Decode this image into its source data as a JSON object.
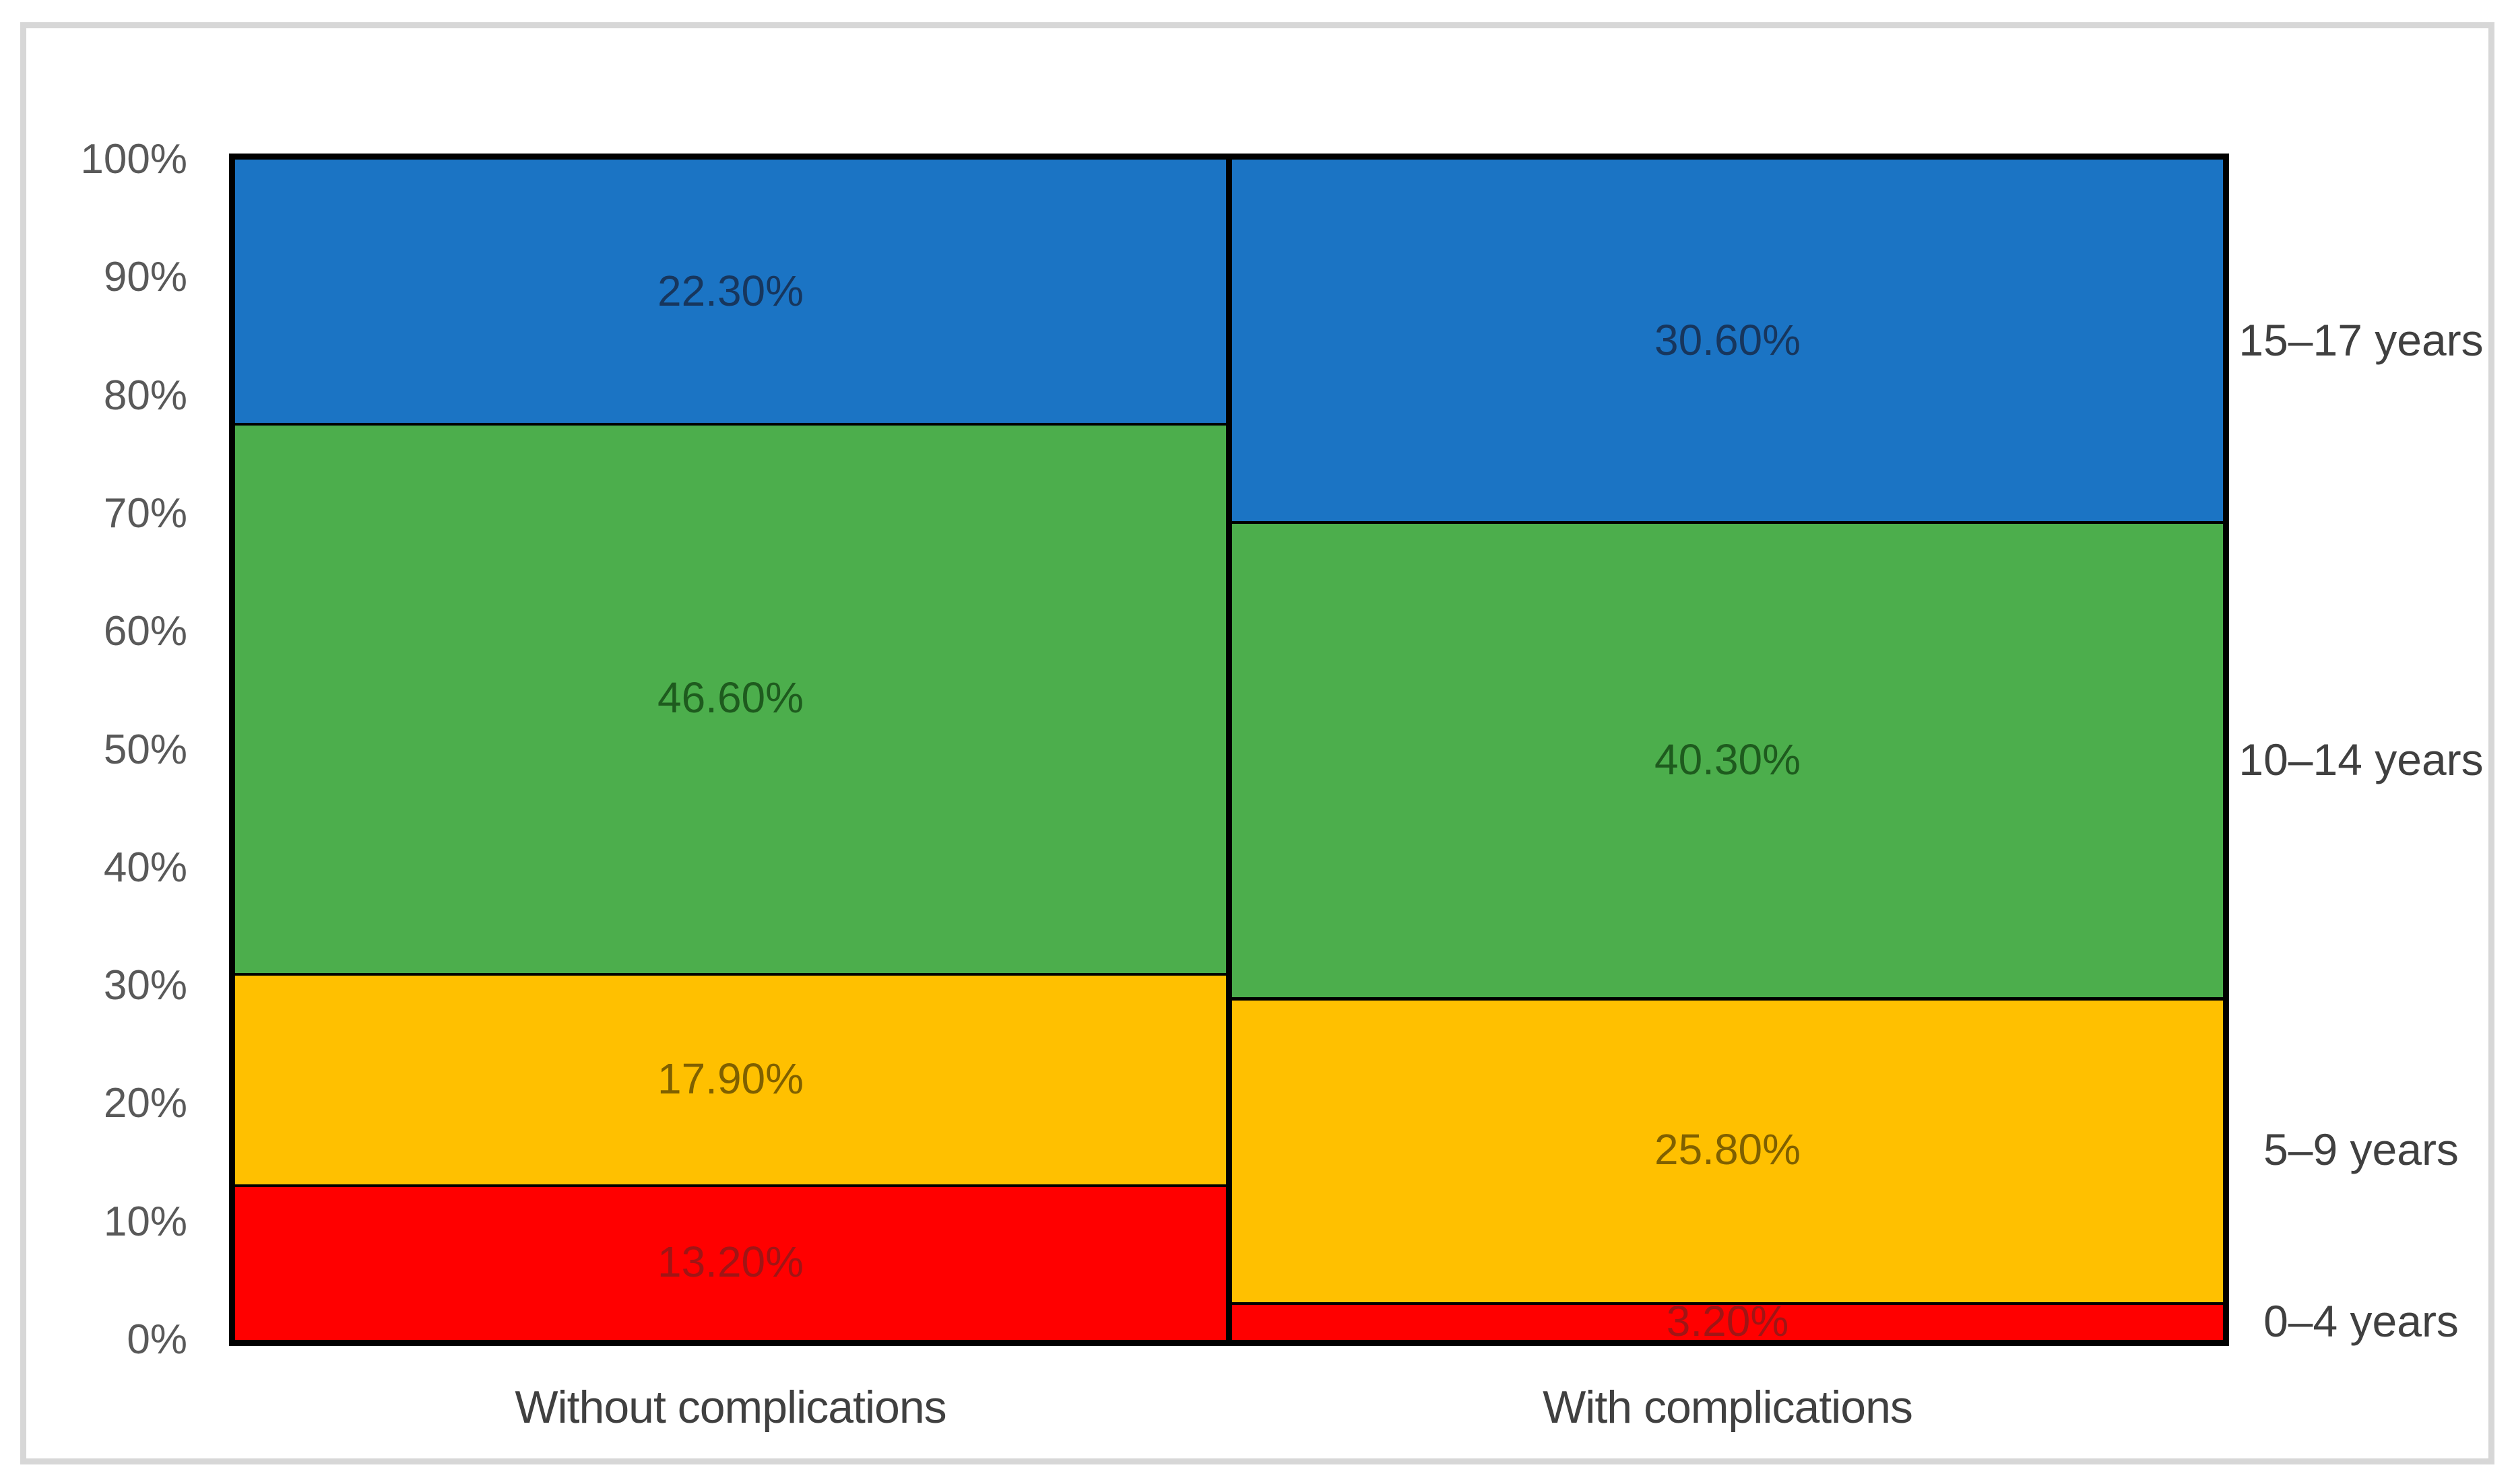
{
  "chart_data": {
    "type": "bar",
    "subtype": "stacked-100-percent",
    "title": "",
    "xlabel": "",
    "ylabel": "",
    "legend_position": "right-of-plot",
    "grid": false,
    "categories": [
      "Without complications",
      "With complications"
    ],
    "series": [
      {
        "name": "0–4 years",
        "color": "#ff0000",
        "label_color": "#a01515",
        "values": [
          13.2,
          3.2
        ],
        "value_labels": [
          "13.20%",
          "3.20%"
        ]
      },
      {
        "name": "5–9 years",
        "color": "#ffc000",
        "label_color": "#7f6000",
        "values": [
          17.9,
          25.8
        ],
        "value_labels": [
          "17.90%",
          "25.80%"
        ]
      },
      {
        "name": "10–14 years",
        "color": "#4cae4c",
        "label_color": "#1e5b1e",
        "values": [
          46.6,
          40.3
        ],
        "value_labels": [
          "46.60%",
          "40.30%"
        ]
      },
      {
        "name": "15–17 years",
        "color": "#1b74c4",
        "label_color": "#17365d",
        "values": [
          22.3,
          30.6
        ],
        "value_labels": [
          "22.30%",
          "30.60%"
        ]
      }
    ],
    "y_axis": {
      "min": 0,
      "max": 100,
      "tick_labels": [
        "0%",
        "10%",
        "20%",
        "30%",
        "40%",
        "50%",
        "60%",
        "70%",
        "80%",
        "90%",
        "100%"
      ]
    },
    "colors": {
      "bar_border": "#000000",
      "frame_border": "#d7d7d7",
      "axis_text": "#595959",
      "category_text": "#404040"
    }
  }
}
